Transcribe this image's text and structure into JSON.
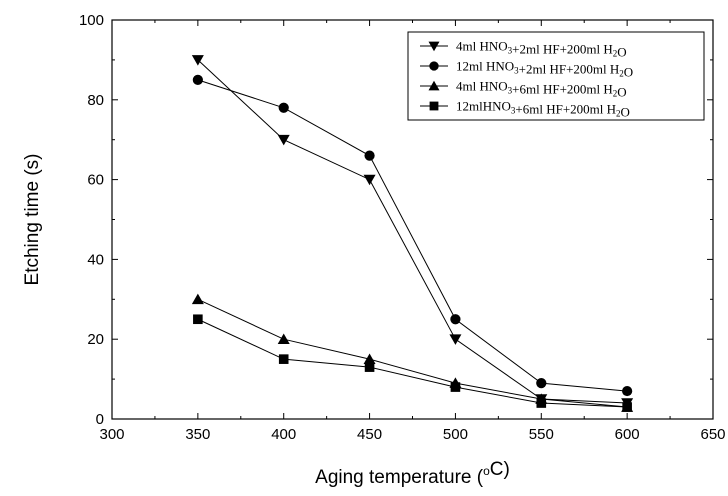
{
  "chart_data": {
    "type": "line",
    "x": [
      350,
      400,
      450,
      500,
      550,
      600
    ],
    "series": [
      {
        "marker": "triangle-down",
        "label_parts": [
          {
            "t": "4ml HNO"
          },
          {
            "t": "3",
            "sub": true
          },
          {
            "t": "+2ml HF+200ml H"
          },
          {
            "t": "2",
            "sub": true
          },
          {
            "t": "O"
          }
        ],
        "values": [
          90,
          70,
          60,
          20,
          5,
          4
        ]
      },
      {
        "marker": "circle",
        "label_parts": [
          {
            "t": "12ml HNO"
          },
          {
            "t": "3",
            "sub": true
          },
          {
            "t": "+2ml HF+200ml H"
          },
          {
            "t": "2",
            "sub": true
          },
          {
            "t": "O"
          }
        ],
        "values": [
          85,
          78,
          66,
          25,
          9,
          7
        ]
      },
      {
        "marker": "triangle-up",
        "label_parts": [
          {
            "t": "4ml HNO"
          },
          {
            "t": "3",
            "sub": true
          },
          {
            "t": "+6ml HF+200ml H"
          },
          {
            "t": "2",
            "sub": true
          },
          {
            "t": "O"
          }
        ],
        "values": [
          30,
          20,
          15,
          9,
          5,
          3
        ]
      },
      {
        "marker": "square",
        "label_parts": [
          {
            "t": "12mlHNO"
          },
          {
            "t": "3",
            "sub": true
          },
          {
            "t": "+6ml HF+200ml H"
          },
          {
            "t": "2",
            "sub": true
          },
          {
            "t": "O"
          }
        ],
        "values": [
          25,
          15,
          13,
          8,
          4,
          3
        ]
      }
    ],
    "xlabel_parts": [
      {
        "t": "Aging temperature ("
      },
      {
        "t": "o",
        "sup": true
      },
      {
        "t": "C)"
      }
    ],
    "ylabel": "Etching time (s)",
    "xlim": [
      300,
      650
    ],
    "ylim": [
      0,
      100
    ],
    "xticks": [
      300,
      350,
      400,
      450,
      500,
      550,
      600,
      650
    ],
    "yticks": [
      0,
      20,
      40,
      60,
      80,
      100
    ],
    "grid": false,
    "legend_position": "top-right",
    "colors": {
      "line": "#000000",
      "marker": "#000000",
      "background": "#ffffff"
    }
  }
}
